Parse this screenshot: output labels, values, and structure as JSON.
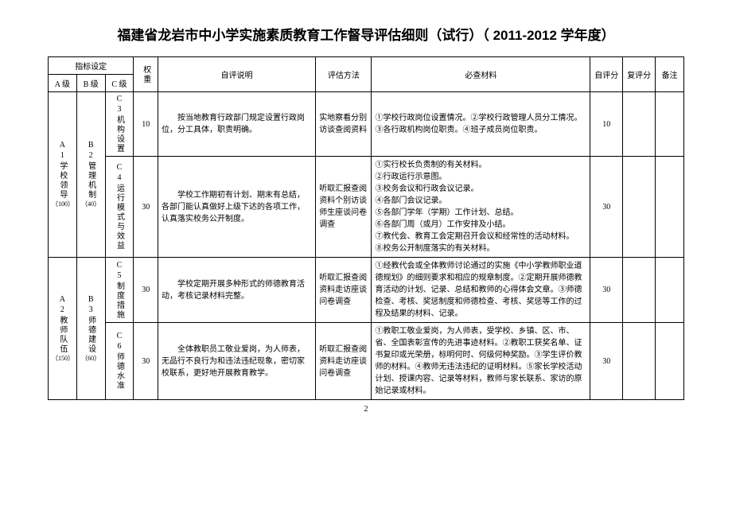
{
  "title": "福建省龙岩市中小学实施素质教育工作督导评估细则（试行）（ 2011-2012 学年度）",
  "page_number": "2",
  "header": {
    "indicator_group": "指标设定",
    "a_level": "A 级",
    "b_level": "B 级",
    "c_level": "C 级",
    "weight": "权重",
    "self_desc": "自评说明",
    "method": "评估方法",
    "materials": "必查材料",
    "self_score": "自评分",
    "review_score": "复评分",
    "note": "备注"
  },
  "rows": {
    "a1": {
      "label": "A1学校领导",
      "sub": "（100）"
    },
    "a2": {
      "label": "A2教师队伍",
      "sub": "（150）"
    },
    "b2": {
      "label": "B2管理机制",
      "sub": "（40）"
    },
    "b3": {
      "label": "B3师德建设",
      "sub": "（60）"
    },
    "c3": {
      "label": "C3机构设置",
      "weight": "10",
      "desc": "按当地教育行政部门规定设置行政岗位，分工具体，职责明确。",
      "method": "实地察看分别访谈查阅资料",
      "materials": "①学校行政岗位设置情况。②学校行政管理人员分工情况。③各行政机构岗位职责。④班子成员岗位职责。",
      "self_score": "10"
    },
    "c4": {
      "label": "C4运行模式与效益",
      "weight": "30",
      "desc": "学校工作期初有计划、期末有总结，各部门能认真做好上级下达的各项工作，认真落实校务公开制度。",
      "method": "听取汇报查阅资料个别访谈师生座谈问卷调查",
      "materials": "①实行校长负责制的有关材料。\n②行政运行示意图。\n③校务会议和行政会议记录。\n④各部门会议记录。\n⑤各部门学年（学期）工作计划、总结。\n⑥各部门周（或月）工作安排及小结。\n⑦教代会、教育工会定期召开会议和经常性的活动材料。\n⑧校务公开制度落实的有关材料。",
      "self_score": "30"
    },
    "c5": {
      "label": "C5制度措施",
      "weight": "30",
      "desc": "学校定期开展多种形式的师德教育活动，考核记录材料完整。",
      "method": "听取汇报查阅资料走访座谈问卷调查",
      "materials": "①经教代会或全体教师讨论通过的实施《中小学教师职业道德规划》的细则要求和相应的规章制度。②定期开展师德教育活动的计划、记录、总结和教师的心得体会文章。③师德检查、考核、奖惩制度和师德检查、考核、奖惩等工作的过程及结果的材料、记录。",
      "self_score": "30"
    },
    "c6": {
      "label": "C6师德水准",
      "weight": "30",
      "desc": "全体教职员工敬业爱岗，为人师表，无品行不良行为和违法违纪现象，密切家校联系，更好地开展教育教学。",
      "method": "听取汇报查阅资料走访座谈问卷调查",
      "materials": "①教职工敬业爱岗，为人师表，受学校、乡镇、区、市、省、全国表彰宣传的先进事迹材料。②教职工获奖名单、证书复印或光荣册，标明何时、何级何种奖励。③学生评价教师的材料。④教师无违法违纪的证明材料。⑤家长学校活动计划、授课内容、记录等材料，教师与家长联系、家访的原始记录或材料。",
      "self_score": "30"
    }
  }
}
